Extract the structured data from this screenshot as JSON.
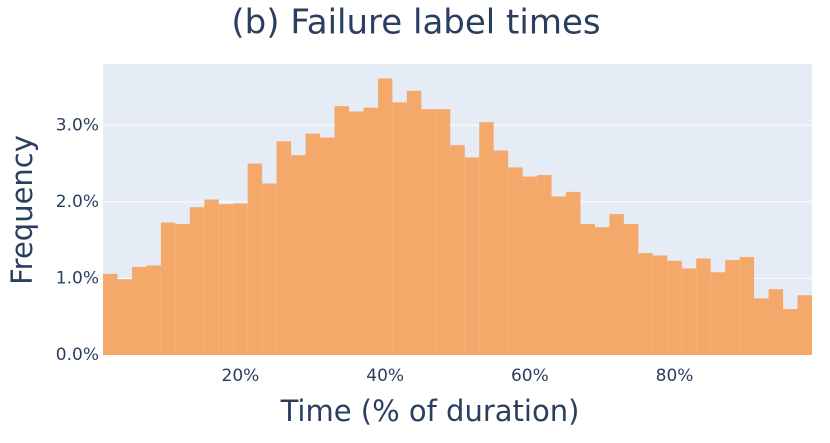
{
  "chart_data": {
    "type": "histogram",
    "title": "(b) Failure label times",
    "x_label": "Time (% of duration)",
    "y_label": "Frequency",
    "bins": [
      1,
      3,
      5,
      7,
      9,
      11,
      13,
      15,
      17,
      19,
      21,
      23,
      25,
      27,
      29,
      31,
      33,
      35,
      37,
      39,
      41,
      43,
      45,
      47,
      49,
      51,
      53,
      55,
      57,
      59,
      61,
      63,
      65,
      67,
      69,
      71,
      73,
      75,
      77,
      79,
      81,
      83,
      85,
      87,
      89,
      91,
      93,
      95,
      97,
      99
    ],
    "values": [
      1.06,
      0.99,
      1.15,
      1.17,
      1.73,
      1.71,
      1.93,
      2.03,
      1.97,
      1.98,
      2.5,
      2.24,
      2.79,
      2.61,
      2.89,
      2.84,
      3.25,
      3.18,
      3.23,
      3.61,
      3.3,
      3.45,
      3.21,
      3.21,
      2.74,
      2.58,
      3.04,
      2.67,
      2.45,
      2.33,
      2.35,
      2.07,
      2.13,
      1.71,
      1.67,
      1.84,
      1.71,
      1.33,
      1.3,
      1.23,
      1.13,
      1.26,
      1.08,
      1.24,
      1.28,
      0.74,
      0.86,
      0.6,
      0.78
    ],
    "color": "#f4a96b",
    "xlim": [
      1,
      99
    ],
    "ylim": [
      0,
      3.8
    ],
    "xticks": [
      {
        "value": 20,
        "label": "20%"
      },
      {
        "value": 40,
        "label": "40%"
      },
      {
        "value": 60,
        "label": "60%"
      },
      {
        "value": 80,
        "label": "80%"
      }
    ],
    "yticks": [
      {
        "value": 0,
        "label": "0.0%"
      },
      {
        "value": 1,
        "label": "1.0%"
      },
      {
        "value": 2,
        "label": "2.0%"
      },
      {
        "value": 3,
        "label": "3.0%"
      }
    ],
    "grid": true
  }
}
